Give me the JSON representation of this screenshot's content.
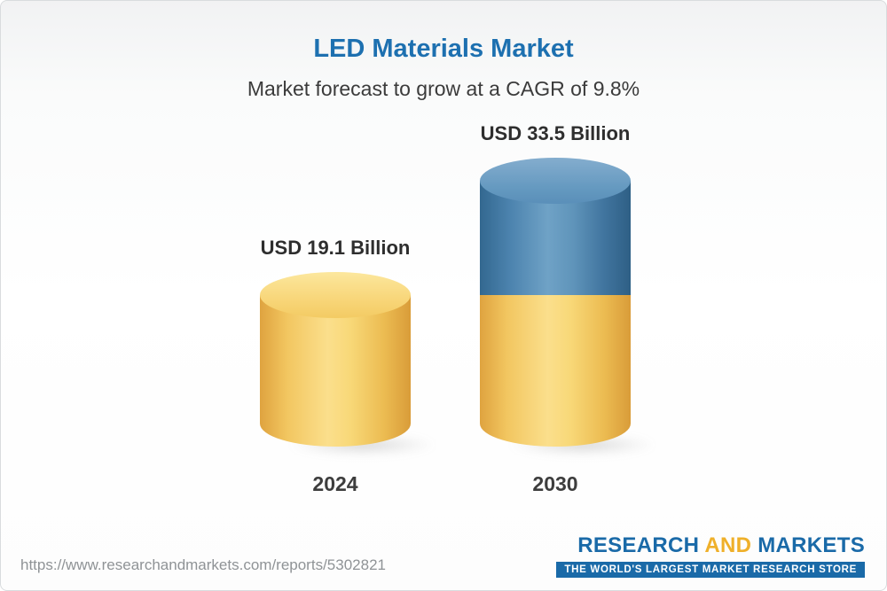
{
  "header": {
    "title": "LED Materials Market",
    "subtitle": "Market forecast to grow at a CAGR of 9.8%"
  },
  "chart_data": {
    "type": "bar",
    "title": "LED Materials Market",
    "subtitle": "Market forecast to grow at a CAGR of 9.8%",
    "unit": "USD Billion",
    "cagr_percent": 9.8,
    "categories": [
      "2024",
      "2030"
    ],
    "values": [
      19.1,
      33.5
    ],
    "value_labels": [
      "USD 19.1 Billion",
      "USD 33.5 Billion"
    ],
    "bars": [
      {
        "category": "2024",
        "total": 19.1,
        "label": "USD 19.1 Billion",
        "segments": [
          {
            "name": "2024 market size",
            "value": 19.1,
            "color": "yellow"
          }
        ]
      },
      {
        "category": "2030",
        "total": 33.5,
        "label": "USD 33.5 Billion",
        "segments": [
          {
            "name": "2024 base",
            "value": 19.1,
            "color": "yellow"
          },
          {
            "name": "growth 2024 to 2030",
            "value": 14.4,
            "color": "blue"
          }
        ]
      }
    ],
    "colors": {
      "yellow": "#F5C963",
      "blue": "#4E83AE",
      "title_blue": "#1D70B0"
    },
    "legend": "none",
    "axes": "none"
  },
  "footer": {
    "url": "https://www.researchandmarkets.com/reports/5302821",
    "logo": {
      "word1": "RESEARCH",
      "word2": "AND",
      "word3": "MARKETS",
      "tagline": "THE WORLD'S LARGEST MARKET RESEARCH STORE"
    }
  }
}
